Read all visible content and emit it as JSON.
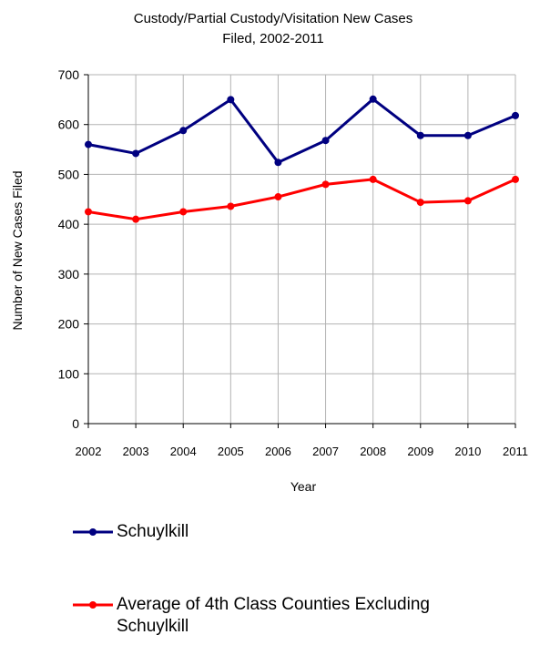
{
  "chart_data": {
    "type": "line",
    "title": [
      "Custody/Partial Custody/Visitation New  Cases",
      "Filed, 2002-2011"
    ],
    "xlabel": "Year",
    "ylabel": "Number of New Cases Filed",
    "categories": [
      "2002",
      "2003",
      "2004",
      "2005",
      "2006",
      "2007",
      "2008",
      "2009",
      "2010",
      "2011"
    ],
    "ylim": [
      0,
      700
    ],
    "yticks": [
      0,
      100,
      200,
      300,
      400,
      500,
      600,
      700
    ],
    "grid": true,
    "legend_position": "bottom",
    "series": [
      {
        "name": "Schuylkill",
        "color": "#000080",
        "values": [
          560,
          542,
          588,
          650,
          524,
          568,
          651,
          578,
          578,
          618
        ]
      },
      {
        "name": "Average of 4th Class Counties Excluding Schuylkill",
        "name_lines": [
          "Average of 4th Class Counties Excluding",
          "Schuylkill"
        ],
        "color": "#ff0000",
        "values": [
          425,
          410,
          425,
          436,
          455,
          480,
          490,
          444,
          447,
          490
        ]
      }
    ]
  }
}
